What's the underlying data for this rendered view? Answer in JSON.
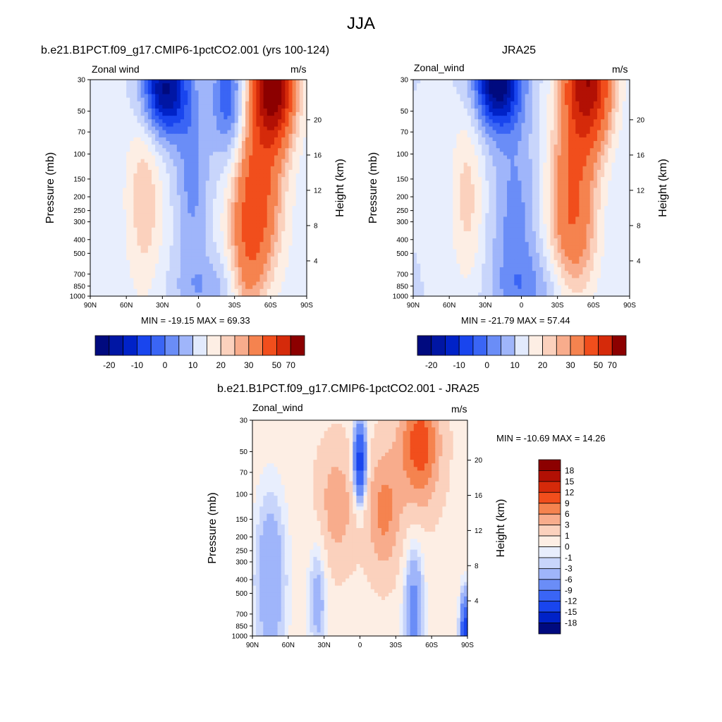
{
  "main_title": "JJA",
  "colors": {
    "ramp17": [
      "#000a7f",
      "#0016a4",
      "#0022c8",
      "#1945ee",
      "#3a65f5",
      "#6a8df7",
      "#9fb5fa",
      "#c8d5fb",
      "#e8eefd",
      "#fdeee4",
      "#fbd1bd",
      "#f8ac8c",
      "#f5834f",
      "#f14e1c",
      "#d52a0a",
      "#b21004",
      "#8c0000"
    ],
    "cbar_top15": [
      "#000a7f",
      "#0016a4",
      "#0022c8",
      "#1945ee",
      "#3a65f5",
      "#6a8df7",
      "#9fb5fa",
      "#e2eafd",
      "#fdeee4",
      "#fbd1bd",
      "#f8ac8c",
      "#f5834f",
      "#f14e1c",
      "#d52a0a",
      "#8c0000"
    ]
  },
  "chart_data": [
    {
      "type": "heatmap",
      "title": "b.e21.B1PCT.f09_g17.CMIP6-1pctCO2.001 (yrs 100-124)",
      "left_label": "Zonal wind",
      "right_label": "m/s",
      "ylabel": "Pressure (mb)",
      "y2label": "Height (km)",
      "xticks": [
        "90N",
        "60N",
        "30N",
        "0",
        "30S",
        "60S",
        "90S"
      ],
      "yticks": [
        "30",
        "50",
        "70",
        "100",
        "150",
        "200",
        "250",
        "300",
        "400",
        "500",
        "700",
        "850",
        "1000"
      ],
      "y2ticks": [
        "20",
        "16",
        "12",
        "8",
        "4"
      ],
      "stats": "MIN = -19.15  MAX =  69.33",
      "levels_labels": [
        "-20",
        "-10",
        "0",
        "10",
        "20",
        "30",
        "50",
        "70"
      ],
      "field": {
        "base": 12,
        "features": [
          {
            "lat": -62,
            "p": 30,
            "a": 72,
            "sx": 12,
            "sy": 2.0
          },
          {
            "lat": -48,
            "p": 200,
            "a": 34,
            "sx": 14,
            "sy": 2.6
          },
          {
            "lat": -40,
            "p": 700,
            "a": 14,
            "sx": 10,
            "sy": 2.0
          },
          {
            "lat": -25,
            "p": 40,
            "a": -22,
            "sx": 10,
            "sy": 2.2
          },
          {
            "lat": 28,
            "p": 35,
            "a": -38,
            "sx": 14,
            "sy": 1.6
          },
          {
            "lat": 45,
            "p": 200,
            "a": 12,
            "sx": 10,
            "sy": 3.0
          },
          {
            "lat": 5,
            "p": 150,
            "a": -14,
            "sx": 10,
            "sy": 3.0
          },
          {
            "lat": -8,
            "p": 900,
            "a": -10,
            "sx": 22,
            "sy": 1.2
          }
        ]
      }
    },
    {
      "type": "heatmap",
      "title": "JRA25",
      "left_label": "Zonal_wind",
      "right_label": "m/s",
      "ylabel": "Pressure (mb)",
      "y2label": "Height (km)",
      "xticks": [
        "90N",
        "60N",
        "30N",
        "0",
        "30S",
        "60S",
        "90S"
      ],
      "yticks": [
        "30",
        "50",
        "70",
        "100",
        "150",
        "200",
        "250",
        "300",
        "400",
        "500",
        "700",
        "850",
        "1000"
      ],
      "y2ticks": [
        "20",
        "16",
        "12",
        "8",
        "4"
      ],
      "stats": "MIN = -21.79  MAX =  57.44",
      "levels_labels": [
        "-20",
        "-10",
        "0",
        "10",
        "20",
        "30",
        "50",
        "70"
      ],
      "field": {
        "base": 10,
        "features": [
          {
            "lat": -55,
            "p": 30,
            "a": 58,
            "sx": 14,
            "sy": 2.2
          },
          {
            "lat": -42,
            "p": 200,
            "a": 28,
            "sx": 14,
            "sy": 2.6
          },
          {
            "lat": -45,
            "p": 600,
            "a": 8,
            "sx": 14,
            "sy": 2.0
          },
          {
            "lat": 20,
            "p": 30,
            "a": -40,
            "sx": 14,
            "sy": 1.6
          },
          {
            "lat": 45,
            "p": 200,
            "a": 12,
            "sx": 10,
            "sy": 3.0
          },
          {
            "lat": 5,
            "p": 300,
            "a": -12,
            "sx": 14,
            "sy": 3.5
          },
          {
            "lat": -10,
            "p": 900,
            "a": -8,
            "sx": 24,
            "sy": 1.2
          }
        ]
      }
    },
    {
      "type": "heatmap",
      "title": "b.e21.B1PCT.f09_g17.CMIP6-1pctCO2.001 - JRA25",
      "left_label": "Zonal_wind",
      "right_label": "m/s",
      "ylabel": "Pressure (mb)",
      "y2label": "Height (km)",
      "xticks": [
        "90N",
        "60N",
        "30N",
        "0",
        "30S",
        "60S",
        "90S"
      ],
      "yticks": [
        "30",
        "50",
        "70",
        "100",
        "150",
        "200",
        "250",
        "300",
        "400",
        "500",
        "700",
        "850",
        "1000"
      ],
      "y2ticks": [
        "20",
        "16",
        "12",
        "8",
        "4"
      ],
      "stats": "MIN = -10.69  MAX =  14.26",
      "levels_labels": [
        "18",
        "15",
        "12",
        "9",
        "6",
        "3",
        "1",
        "0",
        "-1",
        "-3",
        "-6",
        "-9",
        "-12",
        "-15",
        "-18"
      ],
      "field": {
        "base": 2,
        "features": [
          {
            "lat": -50,
            "p": 45,
            "a": 12,
            "sx": 12,
            "sy": 2.0
          },
          {
            "lat": -20,
            "p": 130,
            "a": 8,
            "sx": 10,
            "sy": 2.0
          },
          {
            "lat": 20,
            "p": 120,
            "a": 6,
            "sx": 12,
            "sy": 2.0
          },
          {
            "lat": 0,
            "p": 60,
            "a": -14,
            "sx": 4,
            "sy": 1.4
          },
          {
            "lat": 75,
            "p": 400,
            "a": -5,
            "sx": 10,
            "sy": 3.0
          },
          {
            "lat": -45,
            "p": 700,
            "a": -6,
            "sx": 6,
            "sy": 2.5
          },
          {
            "lat": 35,
            "p": 500,
            "a": -4,
            "sx": 6,
            "sy": 2.5
          },
          {
            "lat": -88,
            "p": 900,
            "a": -12,
            "sx": 3,
            "sy": 1.2
          }
        ]
      }
    }
  ]
}
